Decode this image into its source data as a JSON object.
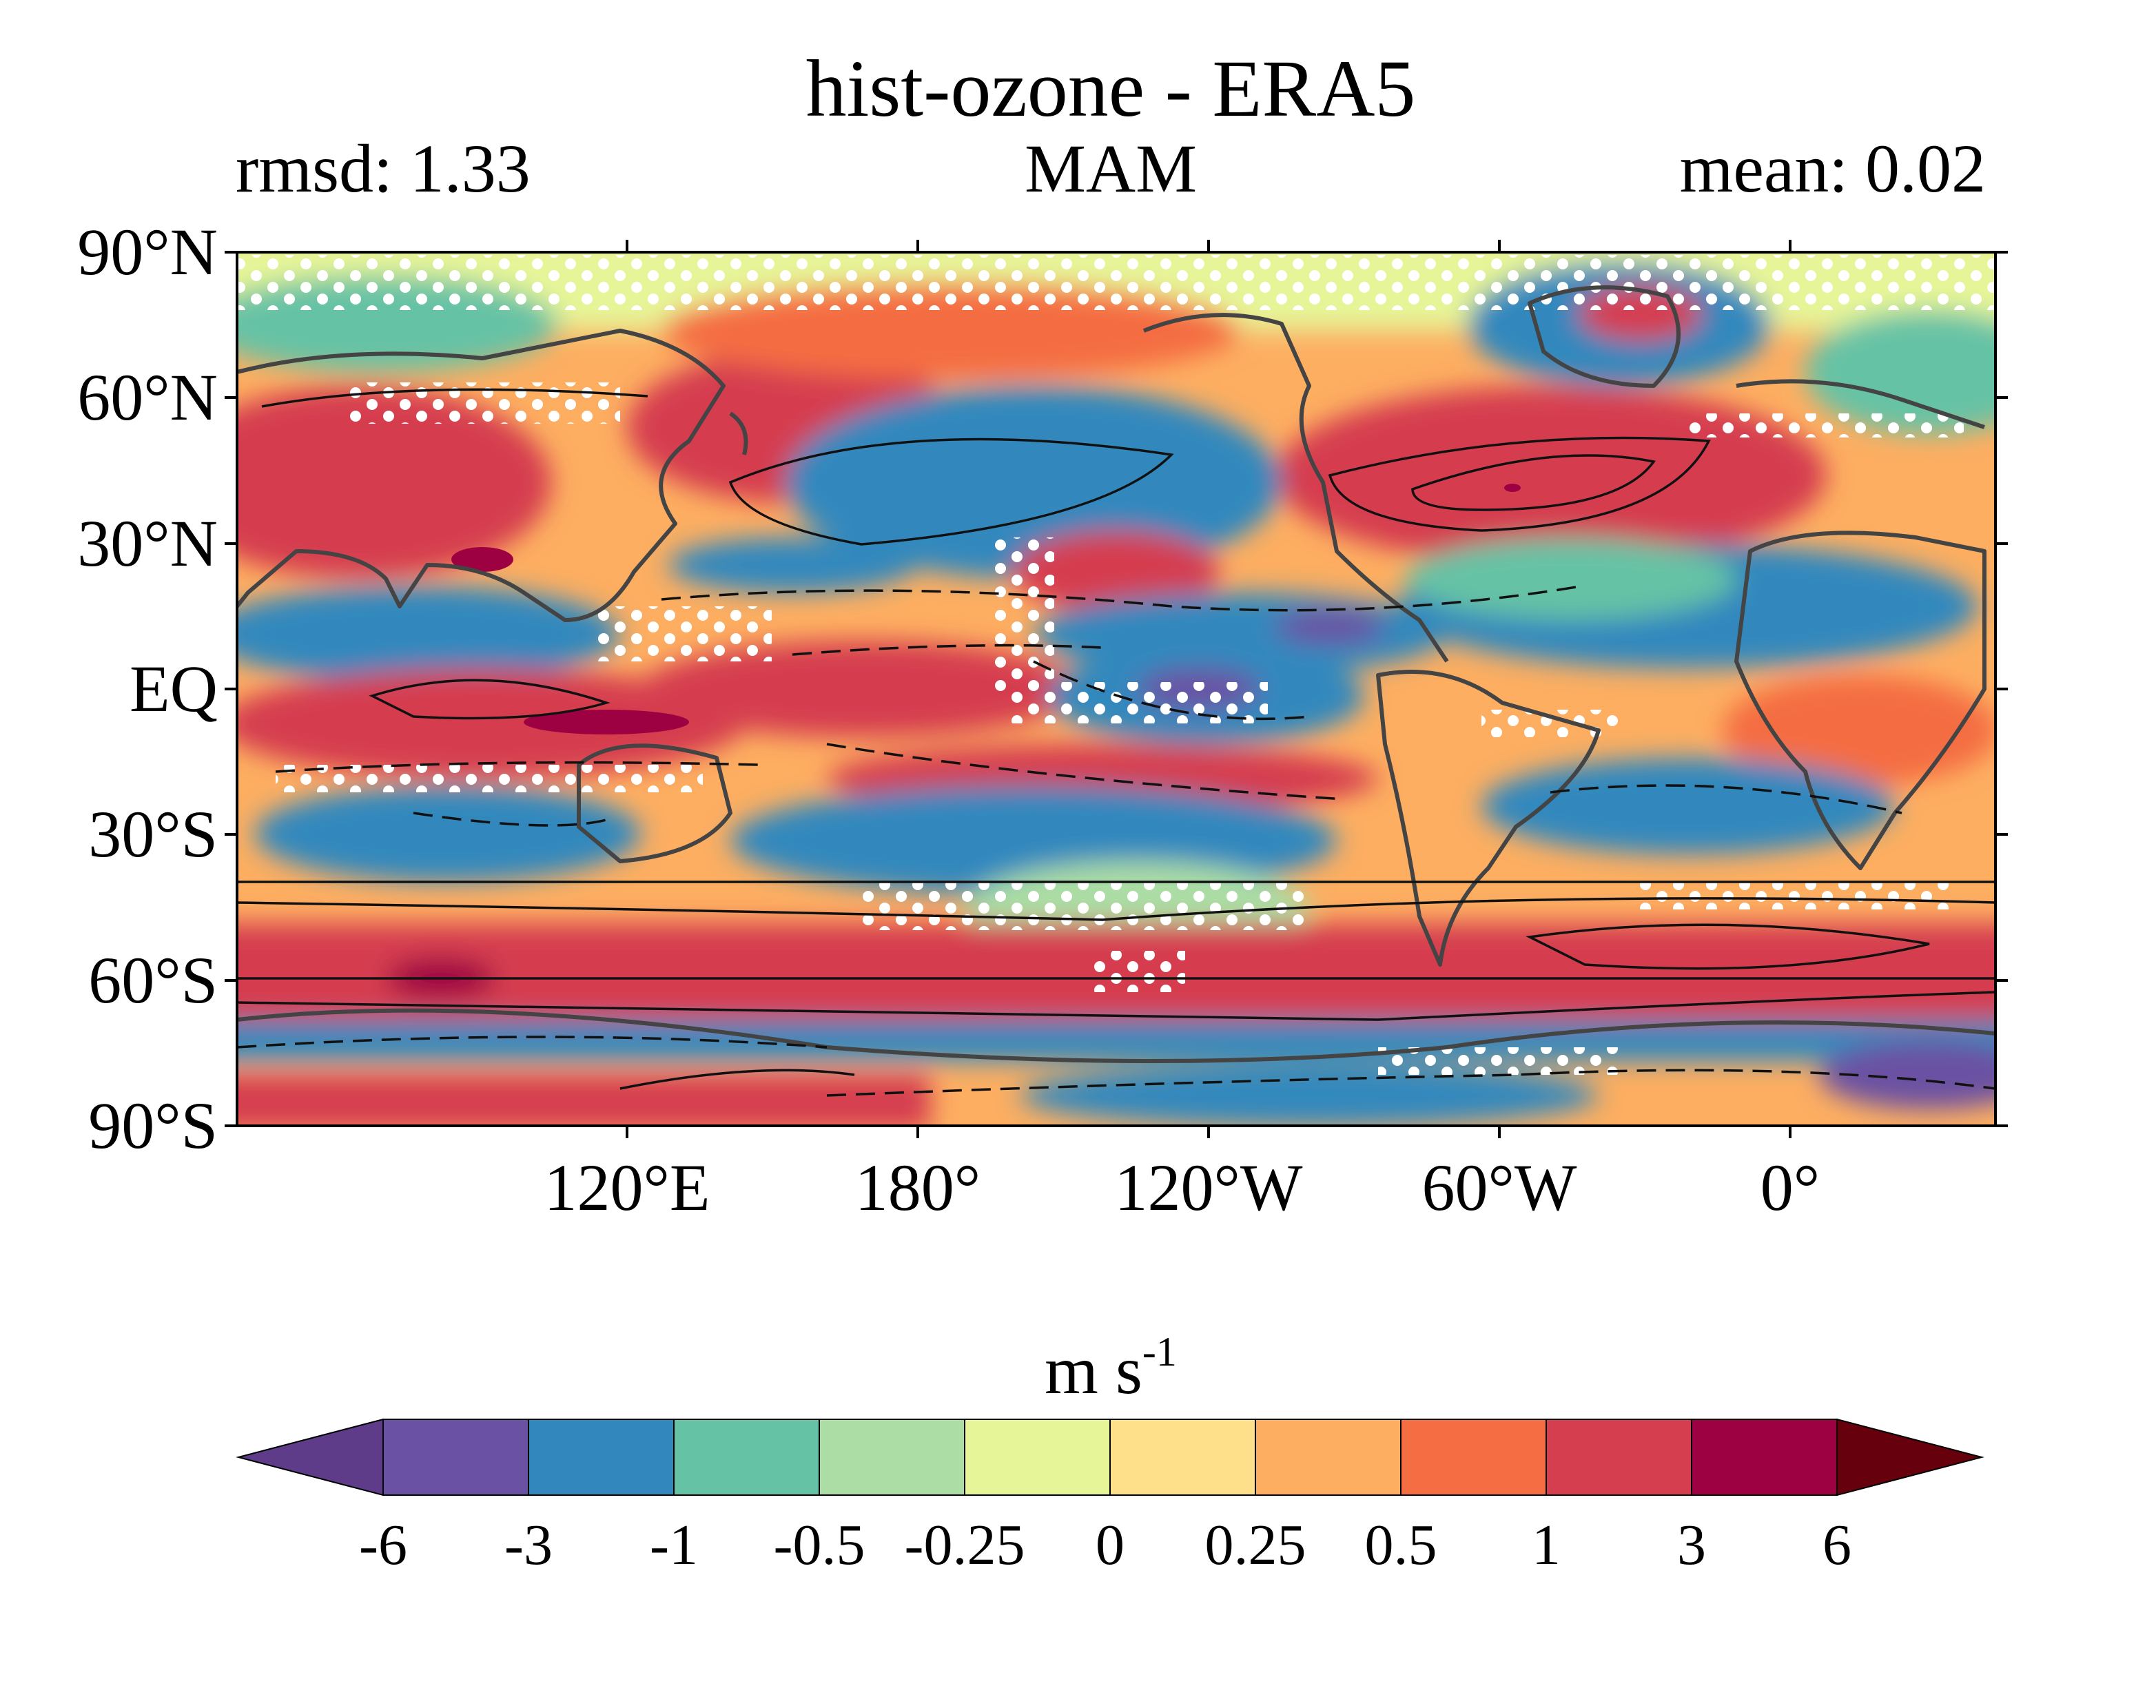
{
  "title": "hist-ozone - ERA5",
  "subtitle_left": "rmsd: 1.33",
  "subtitle_center": "MAM",
  "subtitle_right": "mean: 0.02",
  "y_ticks": [
    "90°N",
    "60°N",
    "30°N",
    "EQ",
    "30°S",
    "60°S",
    "90°S"
  ],
  "x_ticks": [
    "120°E",
    "180°",
    "120°W",
    "60°W",
    "0°"
  ],
  "colorbar": {
    "unit": "m s",
    "unit_exponent": "-1",
    "labels": [
      "-6",
      "-3",
      "-1",
      "-0.5",
      "-0.25",
      "0",
      "0.25",
      "0.5",
      "1",
      "3",
      "6"
    ],
    "colors": [
      "#5e3c8a",
      "#6a51a3",
      "#3288bd",
      "#66c2a5",
      "#abdda4",
      "#e6f598",
      "#fee08b",
      "#fdae61",
      "#f46d43",
      "#d53e4f",
      "#9e0142",
      "#67000d"
    ]
  }
}
